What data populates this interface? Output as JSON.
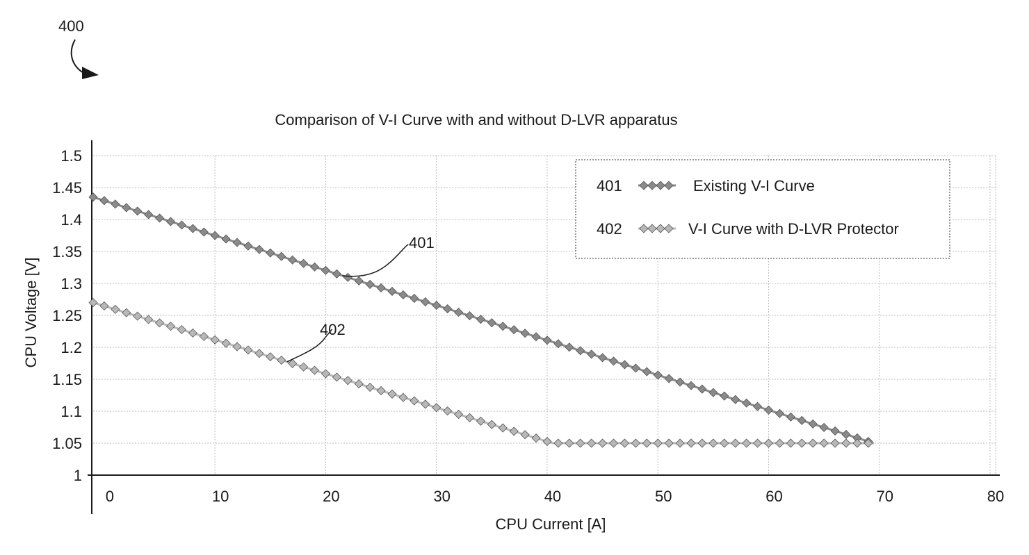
{
  "figure": {
    "number": "400"
  },
  "chart_data": {
    "type": "line",
    "title": "Comparison of V-I Curve with and without D-LVR apparatus",
    "xlabel": "CPU Current [A]",
    "ylabel": "CPU Voltage [V]",
    "xlim": [
      -1.5,
      80
    ],
    "ylim": [
      1,
      1.5
    ],
    "x_ticks": [
      0,
      10,
      20,
      30,
      40,
      50,
      60,
      70,
      80
    ],
    "x_tick_labels": [
      "0",
      "10",
      "20",
      "30",
      "40",
      "50",
      "60",
      "70",
      "80"
    ],
    "y_ticks": [
      1,
      1.05,
      1.1,
      1.15,
      1.2,
      1.25,
      1.3,
      1.35,
      1.4,
      1.45,
      1.5
    ],
    "y_tick_labels": [
      "1",
      "1.05",
      "1.1",
      "1.15",
      "1.2",
      "1.25",
      "1.3",
      "1.35",
      "1.4",
      "1.45",
      "1.5"
    ],
    "grid": true,
    "legend_position": "top-right",
    "series": [
      {
        "id": "401",
        "ref": "401",
        "name": "Existing V-I Curve",
        "color": "#8a8a8a",
        "x": [
          -1.5,
          69
        ],
        "y": [
          1.435,
          1.05
        ],
        "marker_step": 1
      },
      {
        "id": "402",
        "ref": "402",
        "name": "V-I Curve with D-LVR Protector",
        "color": "#b8b8b8",
        "x": [
          -1.5,
          40,
          69
        ],
        "y": [
          1.27,
          1.05,
          1.05
        ],
        "marker_step": 1
      }
    ],
    "annotations": [
      {
        "text": "401",
        "series": "401",
        "at_x": 21
      },
      {
        "text": "402",
        "series": "402",
        "at_x": 16
      }
    ]
  }
}
